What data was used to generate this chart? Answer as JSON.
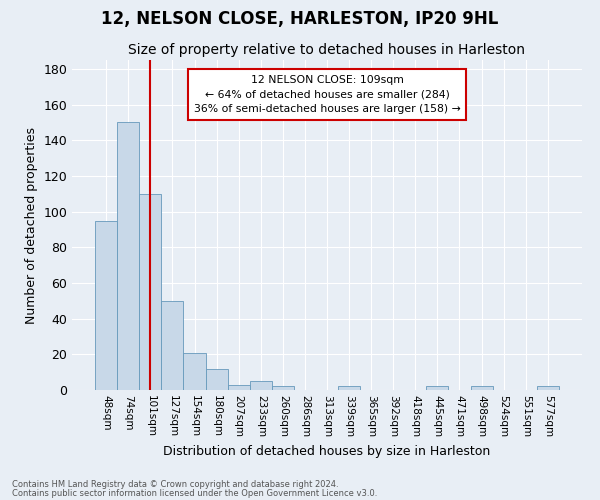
{
  "title": "12, NELSON CLOSE, HARLESTON, IP20 9HL",
  "subtitle": "Size of property relative to detached houses in Harleston",
  "xlabel": "Distribution of detached houses by size in Harleston",
  "ylabel": "Number of detached properties",
  "bar_labels": [
    "48sqm",
    "74sqm",
    "101sqm",
    "127sqm",
    "154sqm",
    "180sqm",
    "207sqm",
    "233sqm",
    "260sqm",
    "286sqm",
    "313sqm",
    "339sqm",
    "365sqm",
    "392sqm",
    "418sqm",
    "445sqm",
    "471sqm",
    "498sqm",
    "524sqm",
    "551sqm",
    "577sqm"
  ],
  "bar_values": [
    95,
    150,
    110,
    50,
    21,
    12,
    3,
    5,
    2,
    0,
    0,
    2,
    0,
    0,
    0,
    2,
    0,
    2,
    0,
    0,
    2
  ],
  "bar_color": "#c8d8e8",
  "bar_edgecolor": "#6699bb",
  "vline_color": "#cc0000",
  "annotation_title": "12 NELSON CLOSE: 109sqm",
  "annotation_line1": "← 64% of detached houses are smaller (284)",
  "annotation_line2": "36% of semi-detached houses are larger (158) →",
  "annotation_box_color": "#ffffff",
  "annotation_box_edgecolor": "#cc0000",
  "footer_line1": "Contains HM Land Registry data © Crown copyright and database right 2024.",
  "footer_line2": "Contains public sector information licensed under the Open Government Licence v3.0.",
  "ylim": [
    0,
    185
  ],
  "yticks": [
    0,
    20,
    40,
    60,
    80,
    100,
    120,
    140,
    160,
    180
  ],
  "background_color": "#e8eef5",
  "plot_background": "#e8eef5",
  "title_fontsize": 12,
  "subtitle_fontsize": 10
}
